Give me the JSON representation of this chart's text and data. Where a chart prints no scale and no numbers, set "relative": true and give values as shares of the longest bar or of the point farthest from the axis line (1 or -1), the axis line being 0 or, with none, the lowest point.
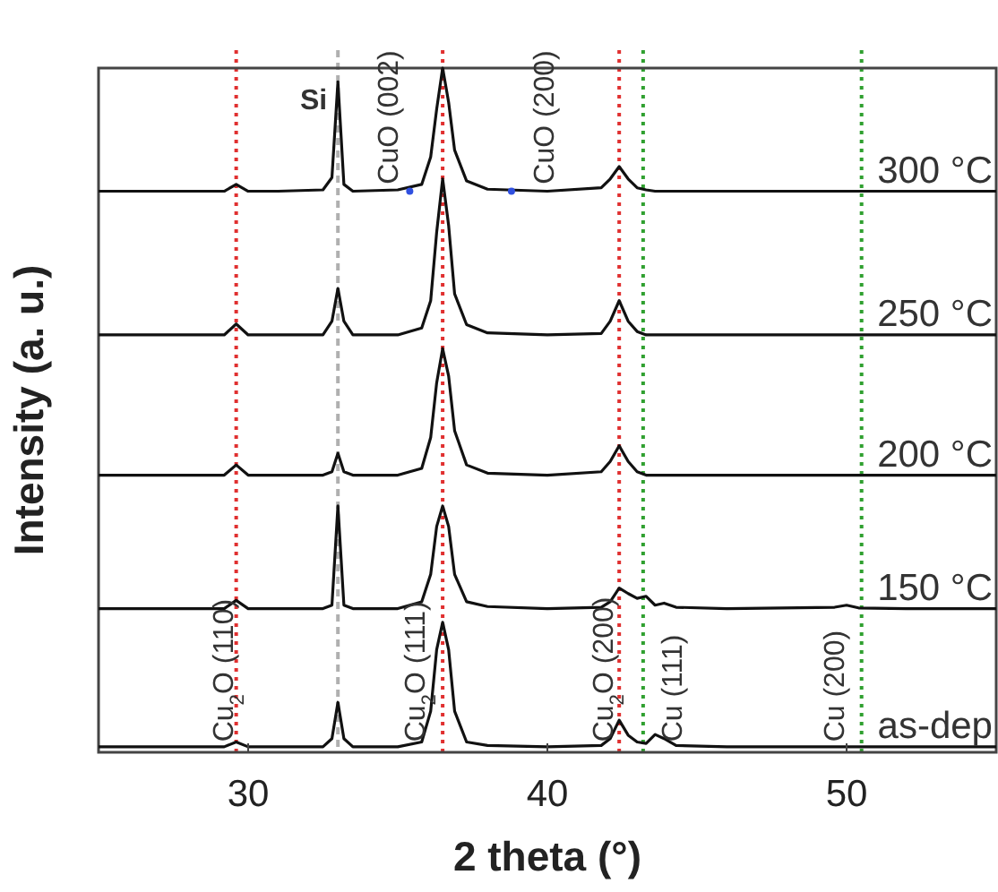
{
  "chart_data": {
    "type": "line",
    "relative": true,
    "xlabel": "2 theta (°)",
    "ylabel": "Intensity (a. u.)",
    "xlim": [
      25,
      55
    ],
    "xticks": [
      30,
      40,
      50
    ],
    "x": [
      25,
      28,
      29.2,
      29.6,
      30,
      31,
      32.5,
      32.8,
      33,
      33.2,
      33.5,
      35,
      35.8,
      36.1,
      36.3,
      36.5,
      36.7,
      36.9,
      37.3,
      38,
      40,
      41.8,
      42.1,
      42.4,
      42.7,
      43,
      43.3,
      43.6,
      43.9,
      44.3,
      46,
      49.6,
      50,
      50.4,
      52,
      55
    ],
    "series": [
      {
        "name": "300 °C",
        "color": "#111111",
        "values": [
          0.82,
          0.82,
          0.82,
          0.83,
          0.82,
          0.82,
          0.822,
          0.84,
          0.98,
          0.83,
          0.82,
          0.822,
          0.83,
          0.87,
          0.94,
          1,
          0.95,
          0.88,
          0.835,
          0.823,
          0.82,
          0.825,
          0.838,
          0.856,
          0.838,
          0.825,
          0.822,
          0.82,
          0.82,
          0.82,
          0.82,
          0.82,
          0.82,
          0.82,
          0.82,
          0.82
        ]
      },
      {
        "name": "250 °C",
        "color": "#111111",
        "values": [
          0.61,
          0.61,
          0.61,
          0.626,
          0.61,
          0.61,
          0.61,
          0.63,
          0.678,
          0.63,
          0.61,
          0.61,
          0.62,
          0.66,
          0.76,
          0.838,
          0.77,
          0.67,
          0.625,
          0.613,
          0.61,
          0.612,
          0.63,
          0.66,
          0.63,
          0.615,
          0.61,
          0.61,
          0.61,
          0.61,
          0.61,
          0.61,
          0.61,
          0.61,
          0.61,
          0.61
        ]
      },
      {
        "name": "200 °C",
        "color": "#111111",
        "values": [
          0.405,
          0.405,
          0.405,
          0.42,
          0.405,
          0.405,
          0.405,
          0.41,
          0.437,
          0.41,
          0.405,
          0.405,
          0.415,
          0.46,
          0.54,
          0.59,
          0.55,
          0.47,
          0.42,
          0.408,
          0.405,
          0.41,
          0.425,
          0.448,
          0.425,
          0.41,
          0.405,
          0.405,
          0.405,
          0.405,
          0.405,
          0.405,
          0.405,
          0.405,
          0.405,
          0.405
        ]
      },
      {
        "name": "150 °C",
        "color": "#111111",
        "values": [
          0.21,
          0.21,
          0.21,
          0.222,
          0.21,
          0.21,
          0.21,
          0.215,
          0.36,
          0.215,
          0.21,
          0.21,
          0.22,
          0.26,
          0.33,
          0.36,
          0.33,
          0.26,
          0.22,
          0.213,
          0.21,
          0.212,
          0.22,
          0.24,
          0.232,
          0.225,
          0.228,
          0.215,
          0.218,
          0.212,
          0.21,
          0.212,
          0.215,
          0.211,
          0.21,
          0.21
        ]
      },
      {
        "name": "as-dep",
        "color": "#111111",
        "values": [
          0.008,
          0.008,
          0.008,
          0.015,
          0.008,
          0.008,
          0.008,
          0.02,
          0.073,
          0.02,
          0.008,
          0.008,
          0.015,
          0.06,
          0.15,
          0.19,
          0.15,
          0.06,
          0.015,
          0.01,
          0.008,
          0.01,
          0.02,
          0.047,
          0.025,
          0.015,
          0.013,
          0.026,
          0.02,
          0.01,
          0.008,
          0.008,
          0.008,
          0.008,
          0.008,
          0.008
        ]
      },
      {
        "type": "scatter",
        "color": "#3050e0",
        "x": [
          35.4,
          38.8
        ],
        "values": [
          0.82,
          0.82
        ]
      }
    ],
    "ref_lines": [
      {
        "axis": "x",
        "value": 29.6,
        "color": "#e03030",
        "line_style": "dotted"
      },
      {
        "axis": "x",
        "value": 36.5,
        "color": "#e03030",
        "line_style": "dotted"
      },
      {
        "axis": "x",
        "value": 42.4,
        "color": "#e03030",
        "line_style": "dotted"
      },
      {
        "axis": "x",
        "value": 33,
        "color": "#b0b0b0",
        "line_style": "dashed"
      },
      {
        "axis": "x",
        "value": 43.2,
        "color": "#30a030",
        "line_style": "dotted"
      },
      {
        "axis": "x",
        "value": 50.5,
        "color": "#30a030",
        "line_style": "dotted"
      }
    ],
    "annotations": [
      {
        "text": "Si",
        "x": 33,
        "y": 0.94
      },
      {
        "text": "CuO (002)",
        "x": 35,
        "y": 0.825
      },
      {
        "text": "CuO (200)",
        "x": 40.2,
        "y": 0.825
      },
      {
        "text": "Cu$_{2}$O (110)",
        "x": 29.5,
        "y": 0.01
      },
      {
        "text": "Cu$_{2}$O (111)",
        "x": 35.9,
        "y": 0.01
      },
      {
        "text": "Cu$_{2}$O (200)",
        "x": 42.2,
        "y": 0.01
      },
      {
        "text": "Cu (111)",
        "x": 44.5,
        "y": 0.01
      },
      {
        "text": "Cu (200)",
        "x": 49.9,
        "y": 0.01
      }
    ],
    "grid": false,
    "legend": false
  }
}
